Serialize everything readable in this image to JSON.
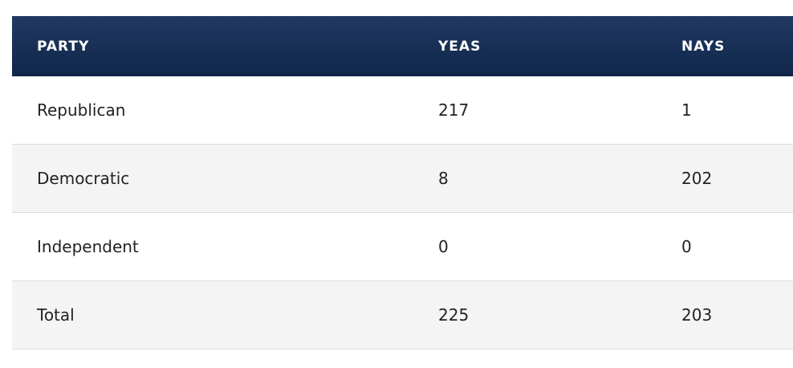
{
  "table": {
    "columns": [
      "PARTY",
      "YEAS",
      "NAYS"
    ],
    "rows": [
      [
        "Republican",
        "217",
        "1"
      ],
      [
        "Democratic",
        "8",
        "202"
      ],
      [
        "Independent",
        "0",
        "0"
      ],
      [
        "Total",
        "225",
        "203"
      ]
    ]
  }
}
